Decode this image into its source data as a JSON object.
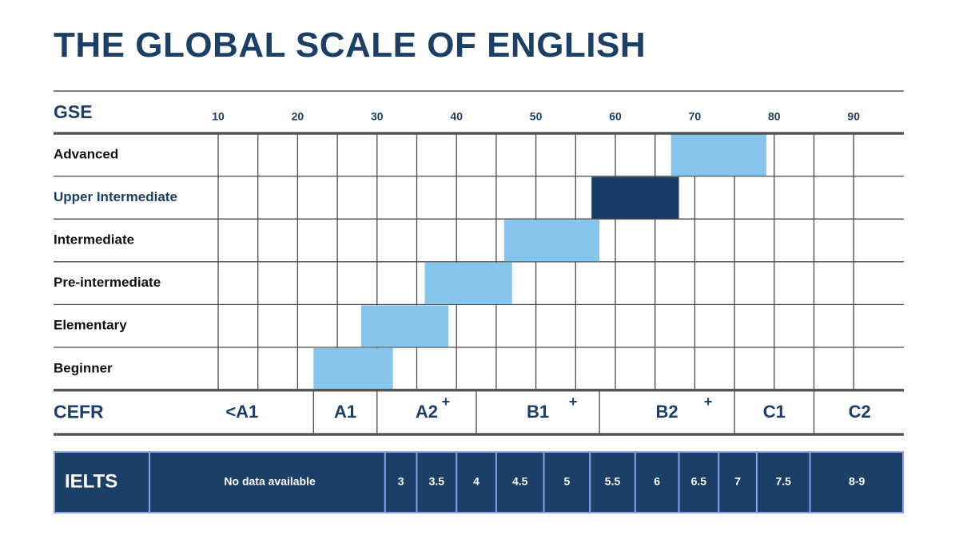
{
  "title": "THE GLOBAL SCALE OF ENGLISH",
  "colors": {
    "navy": "#1b3f66",
    "light_blue": "#86c5ec",
    "dark_bar": "#173d66",
    "grid": "#4a4a4a",
    "ielts_border": "#8c9ef0"
  },
  "chart_data": {
    "type": "bar",
    "orientation": "horizontal-range",
    "title": "THE GLOBAL SCALE OF ENGLISH",
    "xlabel": "GSE",
    "xlim": [
      10,
      90
    ],
    "x_ticks": [
      10,
      20,
      30,
      40,
      50,
      60,
      70,
      80,
      90
    ],
    "categories": [
      "Advanced",
      "Upper Intermediate",
      "Intermediate",
      "Pre-intermediate",
      "Elementary",
      "Beginner"
    ],
    "ranges": [
      {
        "category": "Advanced",
        "start": 67,
        "end": 79,
        "highlight": false
      },
      {
        "category": "Upper Intermediate",
        "start": 57,
        "end": 68,
        "highlight": true
      },
      {
        "category": "Intermediate",
        "start": 46,
        "end": 58,
        "highlight": false
      },
      {
        "category": "Pre-intermediate",
        "start": 36,
        "end": 47,
        "highlight": false
      },
      {
        "category": "Elementary",
        "start": 28,
        "end": 39,
        "highlight": false
      },
      {
        "category": "Beginner",
        "start": 22,
        "end": 32,
        "highlight": false
      }
    ],
    "grid": true,
    "cefr": {
      "label": "CEFR",
      "bands": [
        {
          "label": "<A1",
          "start": 4,
          "end": 22
        },
        {
          "label": "A1",
          "start": 22,
          "end": 30
        },
        {
          "label": "A2",
          "start": 30,
          "end": 42.5,
          "plus": true
        },
        {
          "label": "B1",
          "start": 42.5,
          "end": 58,
          "plus": true
        },
        {
          "label": "B2",
          "start": 58,
          "end": 75,
          "plus": true
        },
        {
          "label": "C1",
          "start": 75,
          "end": 85
        },
        {
          "label": "C2",
          "start": 85,
          "end": 96.5
        }
      ],
      "plus_symbol": "+"
    },
    "ielts": {
      "label": "IELTS",
      "bands": [
        {
          "label": "No data available",
          "start": 2,
          "end": 31
        },
        {
          "label": "3",
          "start": 31,
          "end": 35
        },
        {
          "label": "3.5",
          "start": 35,
          "end": 40
        },
        {
          "label": "4",
          "start": 40,
          "end": 45
        },
        {
          "label": "4.5",
          "start": 45,
          "end": 51
        },
        {
          "label": "5",
          "start": 51,
          "end": 56.8
        },
        {
          "label": "5.5",
          "start": 56.8,
          "end": 62.5
        },
        {
          "label": "6",
          "start": 62.5,
          "end": 68
        },
        {
          "label": "6.5",
          "start": 68,
          "end": 73
        },
        {
          "label": "7",
          "start": 73,
          "end": 77.8
        },
        {
          "label": "7.5",
          "start": 77.8,
          "end": 84.5
        },
        {
          "label": "8-9",
          "start": 84.5,
          "end": 96.3
        }
      ]
    }
  }
}
